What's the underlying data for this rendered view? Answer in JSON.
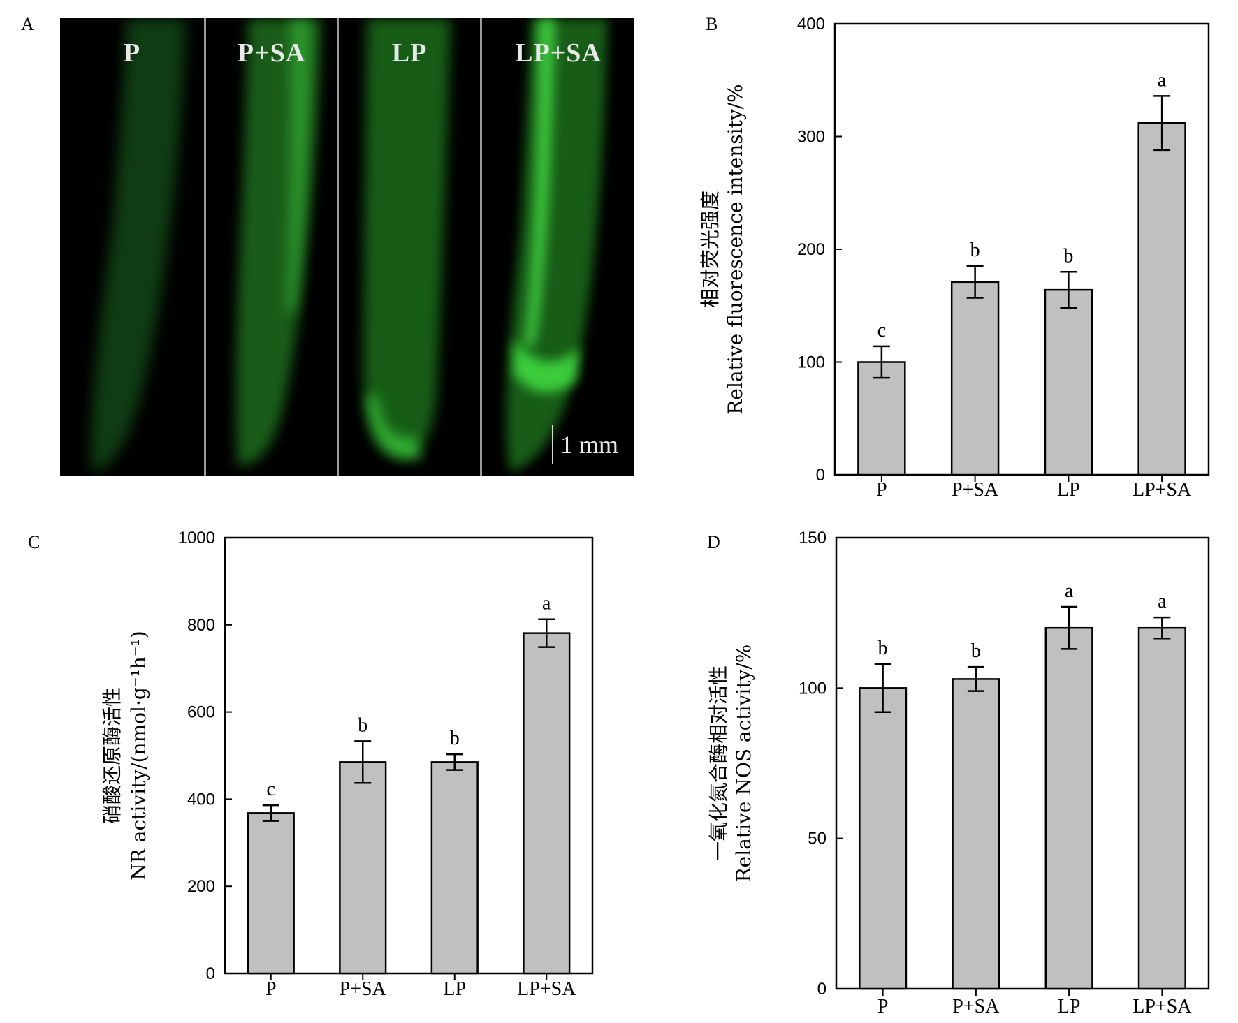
{
  "panels": {
    "A": {
      "letter": "A",
      "strips": [
        "P",
        "P+SA",
        "LP",
        "LP+SA"
      ],
      "scale_bar": "1 mm"
    }
  },
  "chart_data": [
    {
      "id": "B",
      "letter": "B",
      "type": "bar",
      "categories": [
        "P",
        "P+SA",
        "LP",
        "LP+SA"
      ],
      "values": [
        100,
        171,
        164,
        312
      ],
      "errors": [
        14,
        14,
        16,
        24
      ],
      "significance": [
        "c",
        "b",
        "b",
        "a"
      ],
      "ylim": [
        0,
        400
      ],
      "yticks": [
        0,
        100,
        200,
        300,
        400
      ],
      "ylabel_lines": [
        "相对荧光强度",
        "Relative fluorescence intensity/%"
      ],
      "bar_color": "#c0c0c0"
    },
    {
      "id": "C",
      "letter": "C",
      "type": "bar",
      "categories": [
        "P",
        "P+SA",
        "LP",
        "LP+SA"
      ],
      "values": [
        368,
        485,
        485,
        781
      ],
      "errors": [
        18,
        48,
        18,
        32
      ],
      "significance": [
        "c",
        "b",
        "b",
        "a"
      ],
      "ylim": [
        0,
        1000
      ],
      "yticks": [
        0,
        200,
        400,
        600,
        800,
        1000
      ],
      "ylabel_lines": [
        "硝酸还原酶活性",
        "NR activity/(nmol·g⁻¹h⁻¹)"
      ],
      "bar_color": "#c0c0c0"
    },
    {
      "id": "D",
      "letter": "D",
      "type": "bar",
      "categories": [
        "P",
        "P+SA",
        "LP",
        "LP+SA"
      ],
      "values": [
        100,
        103,
        120,
        120
      ],
      "errors": [
        8,
        4,
        7,
        3.5
      ],
      "significance": [
        "b",
        "b",
        "a",
        "a"
      ],
      "ylim": [
        0,
        150
      ],
      "yticks": [
        0,
        50,
        100,
        150
      ],
      "ylabel_lines": [
        "一氧化氮合酶相对活性",
        "Relative NOS activity/%"
      ],
      "bar_color": "#c0c0c0"
    }
  ]
}
